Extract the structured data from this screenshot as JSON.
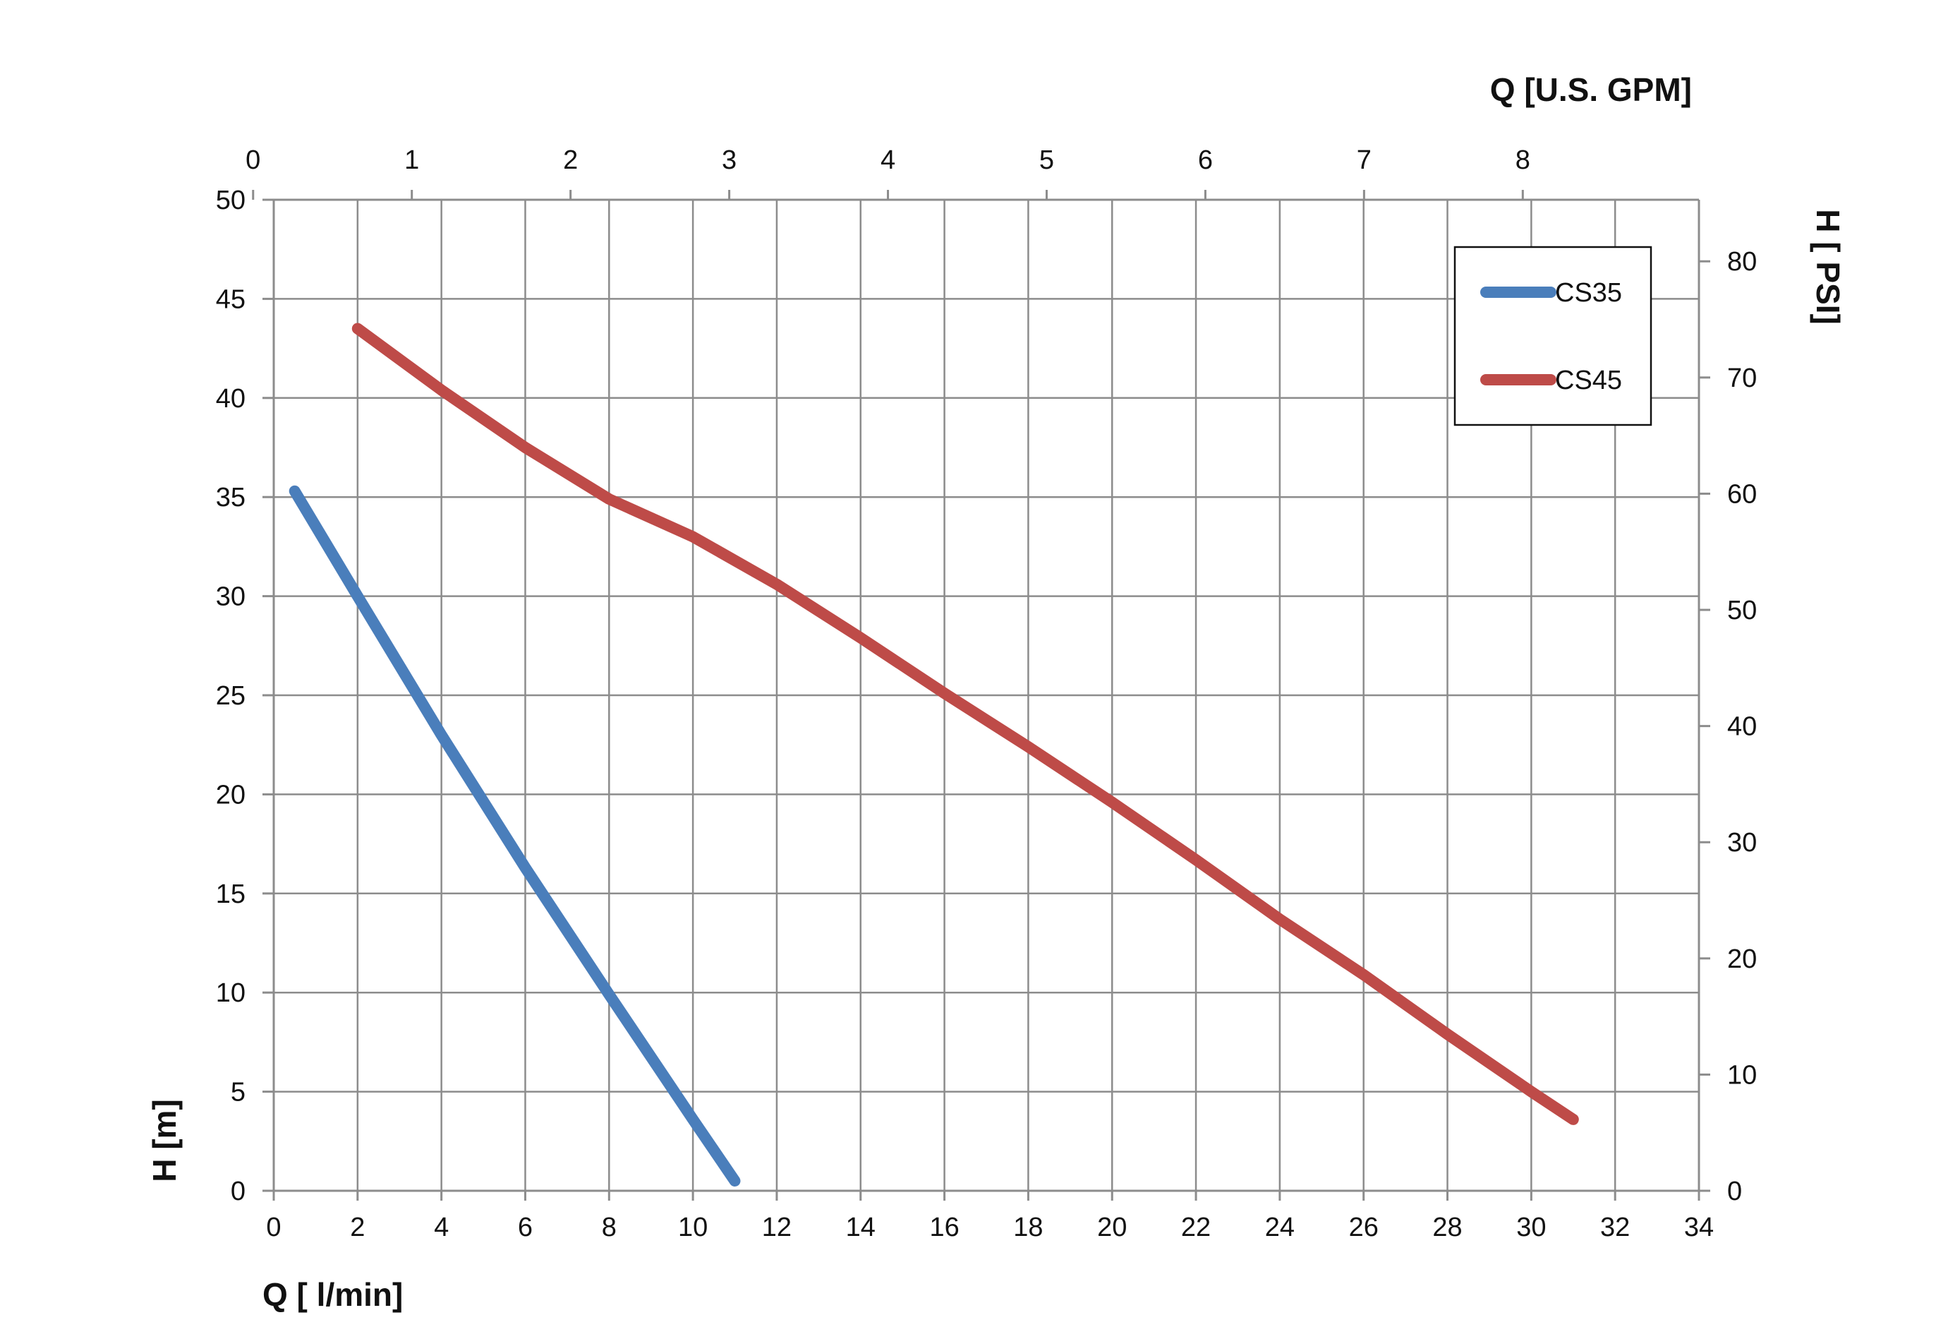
{
  "chart_data": {
    "type": "line",
    "x_axis_bottom": {
      "label": "Q [ l/min]",
      "range": [
        0,
        34
      ],
      "ticks": [
        0,
        2,
        4,
        6,
        8,
        10,
        12,
        14,
        16,
        18,
        20,
        22,
        24,
        26,
        28,
        30,
        32,
        34
      ]
    },
    "x_axis_top": {
      "label": "Q  [U.S. GPM]",
      "range": [
        0.13,
        9.11
      ],
      "ticks": [
        0,
        1,
        2,
        3,
        4,
        5,
        6,
        7,
        8
      ]
    },
    "y_axis_left": {
      "label": "H [m]",
      "range": [
        0,
        50
      ],
      "ticks": [
        0,
        5,
        10,
        15,
        20,
        25,
        30,
        35,
        40,
        45,
        50
      ]
    },
    "y_axis_right": {
      "label": "H [ PSI]",
      "range": [
        0,
        85.3
      ],
      "ticks": [
        0,
        10,
        20,
        30,
        40,
        50,
        60,
        70,
        80
      ]
    },
    "grid": true,
    "legend_position": "top-right",
    "series": [
      {
        "name": "CS35",
        "color": "#4a7ebb",
        "points": [
          [
            0.5,
            35.3
          ],
          [
            2,
            30
          ],
          [
            4,
            23
          ],
          [
            6,
            16.3
          ],
          [
            8,
            9.9
          ],
          [
            10,
            3.6
          ],
          [
            11,
            0.5
          ]
        ]
      },
      {
        "name": "CS45",
        "color": "#be4b48",
        "points": [
          [
            2,
            43.5
          ],
          [
            4,
            40.4
          ],
          [
            6,
            37.5
          ],
          [
            8,
            34.9
          ],
          [
            10,
            33
          ],
          [
            12,
            30.6
          ],
          [
            14,
            27.9
          ],
          [
            16,
            25.1
          ],
          [
            18,
            22.4
          ],
          [
            20,
            19.6
          ],
          [
            22,
            16.7
          ],
          [
            24,
            13.7
          ],
          [
            26,
            10.9
          ],
          [
            28,
            7.9
          ],
          [
            30,
            5
          ],
          [
            31,
            3.6
          ]
        ]
      }
    ]
  }
}
